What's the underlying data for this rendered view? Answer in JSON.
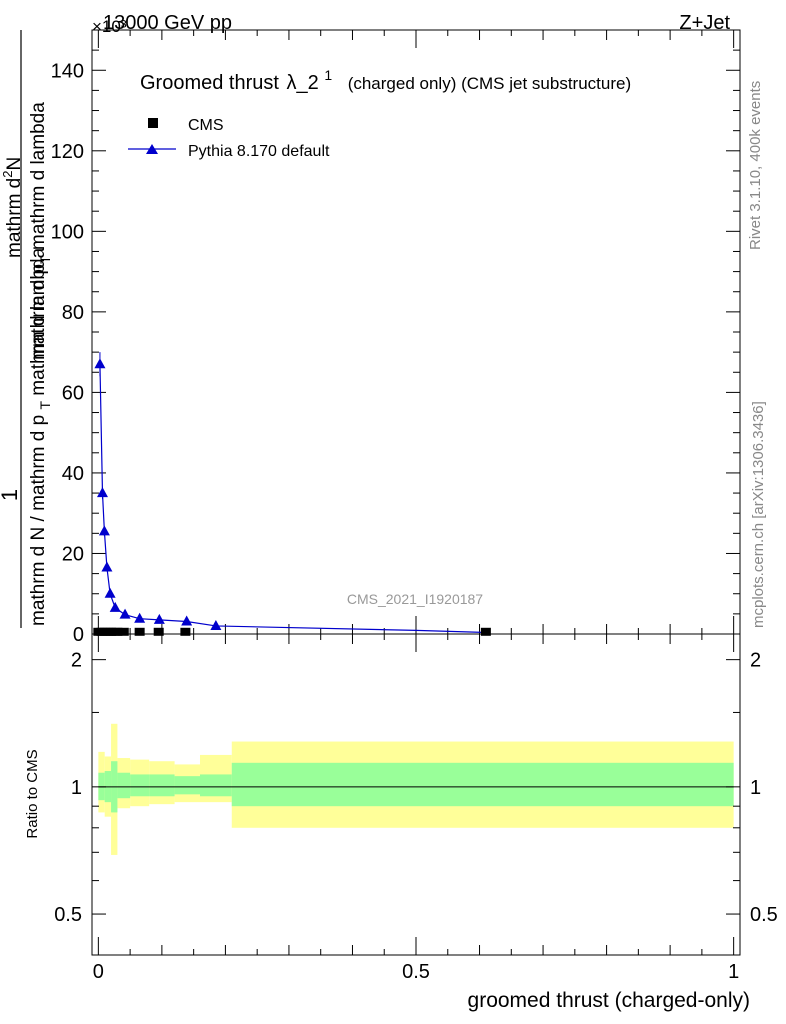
{
  "header": {
    "energy_label": "13000 GeV pp",
    "process_label": "Z+Jet",
    "exponent_label": "×10³"
  },
  "side_labels": {
    "rivet": "Rivet 3.1.10,  400k events",
    "mcplots": "mcplots.cern.ch [arXiv:1306.3436]"
  },
  "watermark": "CMS_2021_I1920187",
  "chart_data": [
    {
      "type": "line",
      "title": "Groomed thrust",
      "title_symbol": "λ_2",
      "title_superscript": "1",
      "title_suffix": "(charged only) (CMS jet substructure)",
      "ylabel_numerator": "1",
      "ylabel_denominator_text": "mathrm d N / mathrm d p",
      "ylabel_denominator_sub": "T",
      "ylabel_denominator_tail": "mathrm d N",
      "ylabel_line2": "mathrm d p",
      "ylabel_line2_sub": "T",
      "ylabel_line2_tail": " mathrm d lambda",
      "ylabel_top": "mathrm d",
      "ylabel_top_sup": "2",
      "ylabel_top_tail": "N",
      "xlim": [
        -0.01,
        1.01
      ],
      "ylim": [
        0,
        150
      ],
      "y_ticks": [
        0,
        20,
        40,
        60,
        80,
        100,
        120,
        140
      ],
      "legend": [
        {
          "label": "CMS",
          "marker": "square",
          "color": "#000000"
        },
        {
          "label": "Pythia 8.170 default",
          "marker": "triangle",
          "color": "#0000cc"
        }
      ],
      "series": [
        {
          "name": "CMS",
          "x": [
            0.0,
            0.005,
            0.01,
            0.015,
            0.02,
            0.025,
            0.03,
            0.04,
            0.065,
            0.095,
            0.137,
            0.61
          ],
          "y": [
            0.3,
            0.3,
            0.3,
            0.3,
            0.3,
            0.3,
            0.3,
            0.3,
            0.3,
            0.3,
            0.3,
            0.3
          ]
        },
        {
          "name": "Pythia 8.170 default",
          "color": "#0000cc",
          "x": [
            0.0025,
            0.0065,
            0.0095,
            0.0135,
            0.0185,
            0.0265,
            0.042,
            0.065,
            0.096,
            0.139,
            0.185,
            0.5,
            0.605
          ],
          "y": [
            67,
            35,
            25.5,
            16.5,
            10,
            6.5,
            4.8,
            3.8,
            3.5,
            3.1,
            2.0,
            0.9,
            0.4
          ],
          "err": [
            3,
            1.5,
            1.2,
            1.0,
            0.8,
            0.5,
            0.4,
            0.3,
            0.3,
            0.3,
            0.2,
            0.1,
            0.1
          ]
        }
      ]
    },
    {
      "type": "area",
      "ylabel": "Ratio to CMS",
      "xlabel": "groomed thrust (charged-only)",
      "xlim": [
        -0.01,
        1.01
      ],
      "ylim": [
        0.4,
        2.3
      ],
      "y_scale": "log",
      "y_ticks": [
        0.5,
        1,
        2
      ],
      "y_tick_labels": [
        "0.5",
        "1",
        "2"
      ],
      "x_ticks": [
        0,
        0.5,
        1
      ],
      "x_tick_labels": [
        "0",
        "0.5",
        "1"
      ],
      "bands": {
        "edges": [
          0.0,
          0.01,
          0.02,
          0.03,
          0.05,
          0.08,
          0.12,
          0.16,
          0.21,
          1.0
        ],
        "inner_low": [
          0.93,
          0.92,
          0.87,
          0.94,
          0.95,
          0.95,
          0.96,
          0.95,
          0.9
        ],
        "inner_high": [
          1.08,
          1.09,
          1.15,
          1.08,
          1.07,
          1.07,
          1.06,
          1.07,
          1.14
        ],
        "outer_low": [
          0.87,
          0.85,
          0.69,
          0.89,
          0.9,
          0.91,
          0.92,
          0.92,
          0.8
        ],
        "outer_high": [
          1.21,
          1.18,
          1.41,
          1.17,
          1.16,
          1.15,
          1.13,
          1.19,
          1.28
        ],
        "inner_color": "#99ff99",
        "outer_color": "#ffff99"
      },
      "reference_line": 1
    }
  ]
}
